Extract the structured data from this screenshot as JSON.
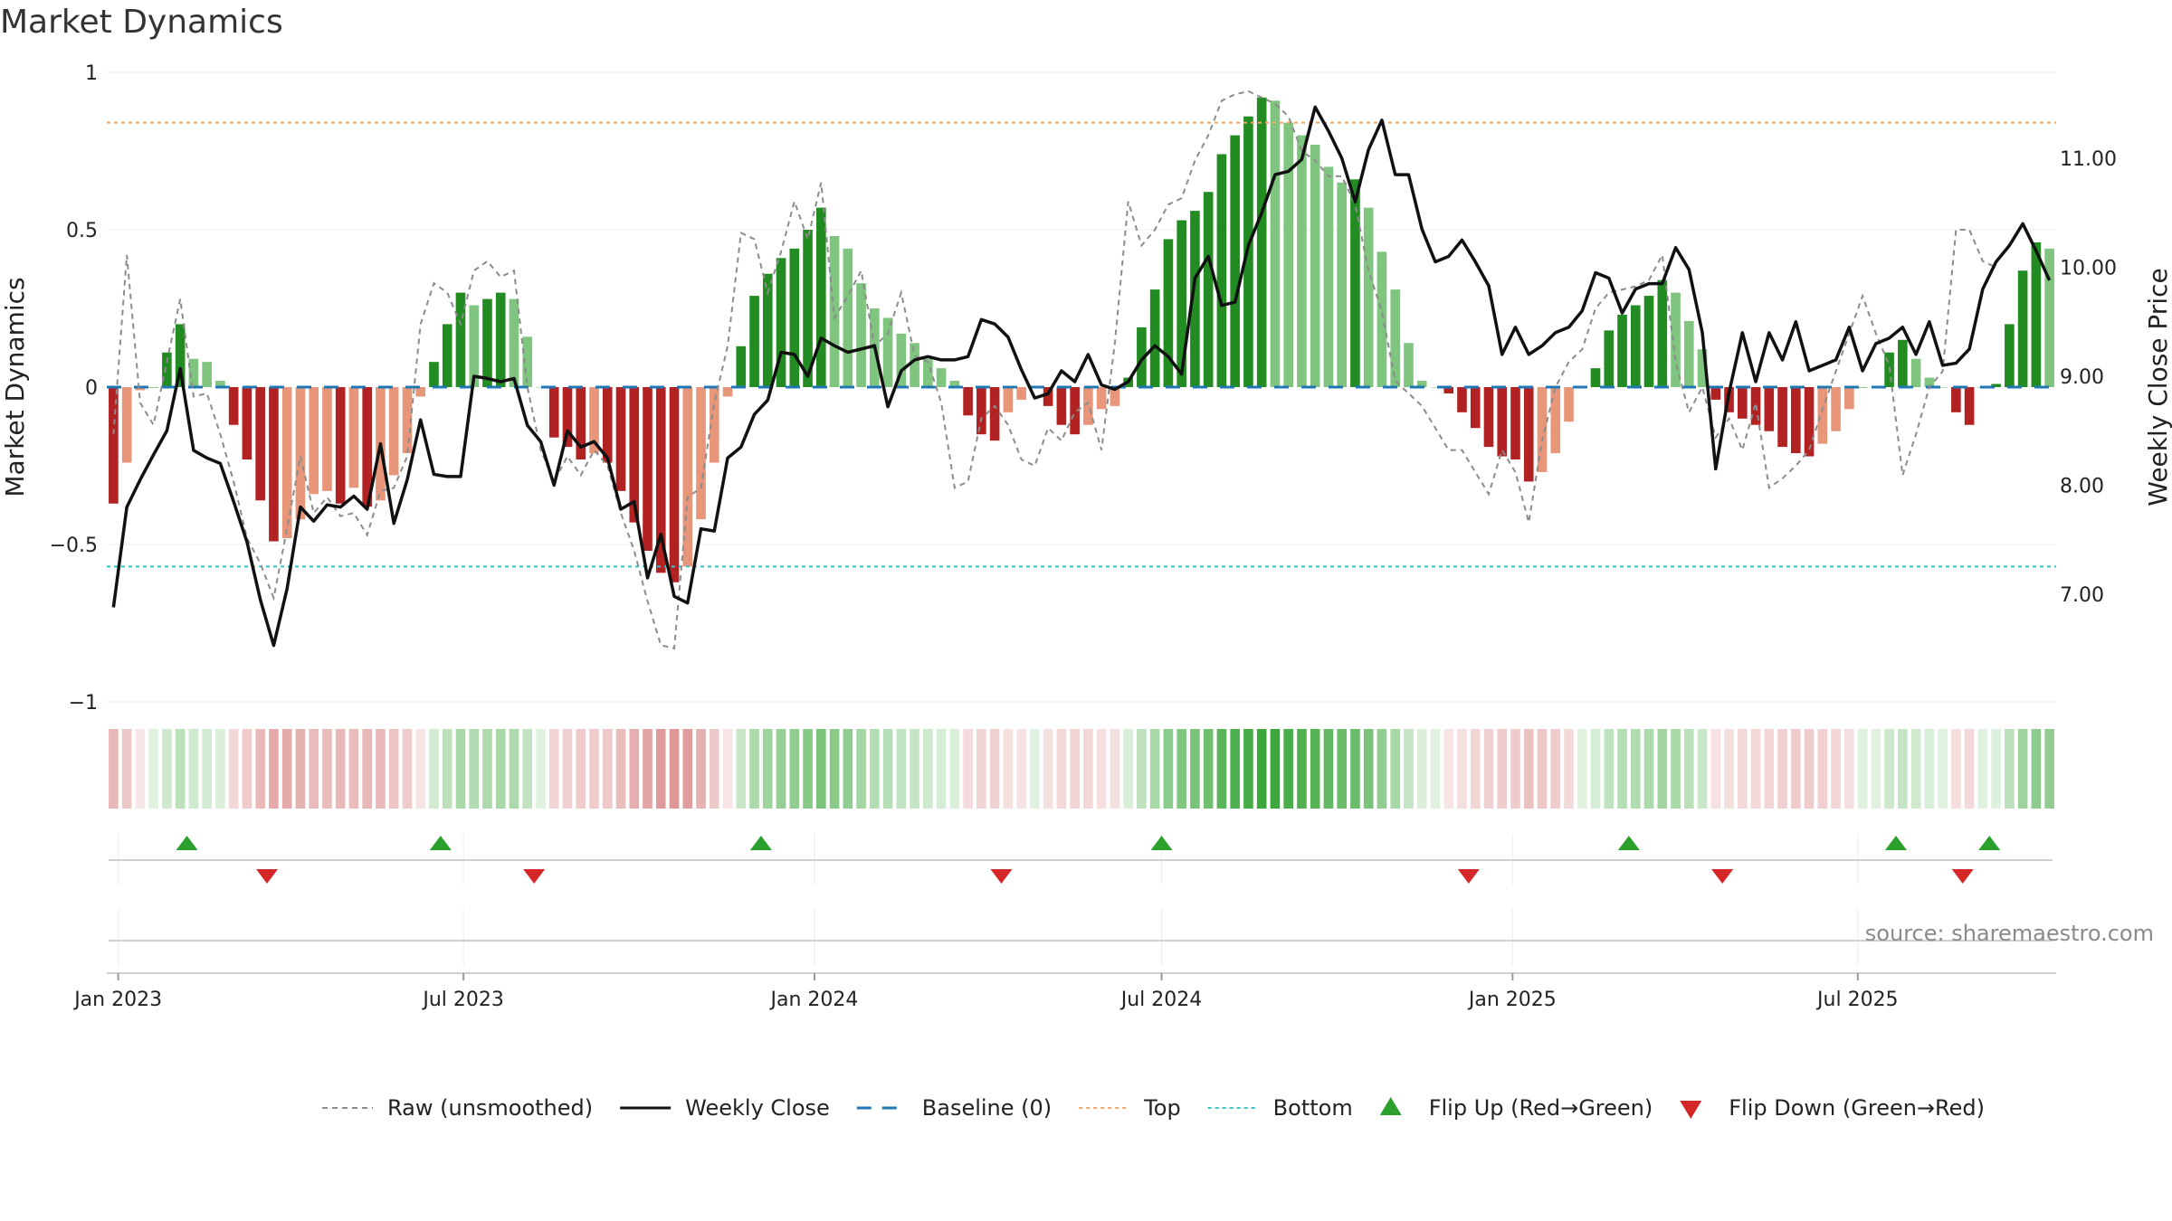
{
  "chart_data": {
    "type": "bar",
    "title": "Market Dynamics",
    "ylabel": "Market Dynamics",
    "y2label": "Weekly Close Price",
    "ylim": [
      -1,
      1
    ],
    "y2lim": [
      6.0,
      11.8
    ],
    "yticks": [
      {
        "value": 1,
        "label": "1"
      },
      {
        "value": 0.5,
        "label": "0.5"
      },
      {
        "value": 0,
        "label": "0"
      },
      {
        "value": -0.5,
        "label": "−0.5"
      },
      {
        "value": -1,
        "label": "−1"
      }
    ],
    "y2ticks": [
      {
        "value": 7,
        "label": "7.00"
      },
      {
        "value": 8,
        "label": "8.00"
      },
      {
        "value": 9,
        "label": "9.00"
      },
      {
        "value": 10,
        "label": "10.00"
      },
      {
        "value": 11,
        "label": "11.00"
      }
    ],
    "x_start": "2022-12-26",
    "x_end": "2025-10-13",
    "xticks": [
      {
        "date": "2023-01-01",
        "label": "Jan 2023"
      },
      {
        "date": "2023-07-01",
        "label": "Jul 2023"
      },
      {
        "date": "2024-01-01",
        "label": "Jan 2024"
      },
      {
        "date": "2024-07-01",
        "label": "Jul 2024"
      },
      {
        "date": "2025-01-01",
        "label": "Jan 2025"
      },
      {
        "date": "2025-07-01",
        "label": "Jul 2025"
      }
    ],
    "top_level": 0.84,
    "bottom_level": -0.57,
    "grid": true,
    "legend_position": "bottom",
    "series": [
      {
        "name": "Market Dynamics (smoothed)",
        "kind": "bar",
        "values": [
          -0.37,
          -0.24,
          -0.01,
          0.0,
          0.11,
          0.2,
          0.09,
          0.08,
          0.02,
          -0.12,
          -0.23,
          -0.36,
          -0.49,
          -0.48,
          -0.42,
          -0.34,
          -0.33,
          -0.37,
          -0.32,
          -0.38,
          -0.36,
          -0.28,
          -0.21,
          -0.03,
          0.08,
          0.2,
          0.3,
          0.26,
          0.28,
          0.3,
          0.28,
          0.16,
          0.0,
          -0.16,
          -0.19,
          -0.23,
          -0.21,
          -0.24,
          -0.33,
          -0.43,
          -0.52,
          -0.59,
          -0.62,
          -0.57,
          -0.42,
          -0.24,
          -0.03,
          0.13,
          0.29,
          0.36,
          0.41,
          0.44,
          0.5,
          0.57,
          0.48,
          0.44,
          0.33,
          0.25,
          0.22,
          0.17,
          0.14,
          0.09,
          0.06,
          0.02,
          -0.09,
          -0.15,
          -0.17,
          -0.08,
          -0.04,
          0.0,
          -0.06,
          -0.12,
          -0.15,
          -0.12,
          -0.07,
          -0.06,
          0.03,
          0.19,
          0.31,
          0.47,
          0.53,
          0.56,
          0.62,
          0.74,
          0.8,
          0.86,
          0.92,
          0.91,
          0.84,
          0.8,
          0.77,
          0.7,
          0.65,
          0.66,
          0.57,
          0.43,
          0.31,
          0.14,
          0.02,
          0.0,
          -0.02,
          -0.08,
          -0.13,
          -0.19,
          -0.22,
          -0.23,
          -0.3,
          -0.27,
          -0.21,
          -0.11,
          0.0,
          0.06,
          0.18,
          0.23,
          0.26,
          0.29,
          0.34,
          0.3,
          0.21,
          0.12,
          -0.04,
          -0.08,
          -0.1,
          -0.12,
          -0.14,
          -0.19,
          -0.21,
          -0.22,
          -0.18,
          -0.14,
          -0.07,
          0.0,
          0.0,
          0.11,
          0.15,
          0.09,
          0.03,
          0.0,
          -0.08,
          -0.12,
          0.0,
          0.01,
          0.2,
          0.37,
          0.46,
          0.44
        ]
      },
      {
        "name": "Raw (unsmoothed)",
        "kind": "line",
        "style": "dashed",
        "color": "#8c8c8c",
        "values": [
          -0.15,
          0.42,
          -0.05,
          -0.12,
          0.08,
          0.28,
          -0.03,
          -0.02,
          -0.15,
          -0.3,
          -0.48,
          -0.56,
          -0.67,
          -0.45,
          -0.22,
          -0.4,
          -0.35,
          -0.41,
          -0.4,
          -0.47,
          -0.33,
          -0.32,
          -0.22,
          0.2,
          0.33,
          0.3,
          0.2,
          0.37,
          0.4,
          0.35,
          0.37,
          0.0,
          -0.2,
          -0.3,
          -0.22,
          -0.28,
          -0.2,
          -0.25,
          -0.4,
          -0.52,
          -0.68,
          -0.82,
          -0.83,
          -0.35,
          -0.32,
          -0.05,
          0.13,
          0.49,
          0.47,
          0.3,
          0.43,
          0.59,
          0.47,
          0.65,
          0.22,
          0.29,
          0.37,
          0.13,
          0.17,
          0.3,
          0.1,
          0.08,
          -0.05,
          -0.32,
          -0.3,
          -0.1,
          -0.06,
          -0.12,
          -0.23,
          -0.25,
          -0.13,
          -0.17,
          -0.08,
          -0.05,
          -0.2,
          0.14,
          0.59,
          0.45,
          0.5,
          0.58,
          0.6,
          0.72,
          0.8,
          0.91,
          0.93,
          0.94,
          0.92,
          0.9,
          0.86,
          0.75,
          0.72,
          0.67,
          0.67,
          0.58,
          0.37,
          0.24,
          0.02,
          -0.02,
          -0.06,
          -0.13,
          -0.2,
          -0.2,
          -0.27,
          -0.34,
          -0.2,
          -0.27,
          -0.43,
          -0.17,
          0.0,
          0.08,
          0.12,
          0.25,
          0.3,
          0.31,
          0.32,
          0.34,
          0.42,
          0.08,
          -0.08,
          0.0,
          -0.16,
          -0.1,
          -0.2,
          -0.05,
          -0.32,
          -0.29,
          -0.25,
          -0.2,
          -0.07,
          0.05,
          0.17,
          0.29,
          0.17,
          0.07,
          -0.28,
          -0.15,
          0.0,
          0.05,
          0.5,
          0.5,
          0.4,
          0.38
        ]
      },
      {
        "name": "Weekly Close",
        "kind": "line",
        "axis": "right",
        "color": "#111111",
        "values": [
          6.88,
          7.8,
          8.05,
          8.28,
          8.5,
          9.07,
          8.32,
          8.25,
          8.2,
          7.85,
          7.48,
          6.95,
          6.53,
          7.05,
          7.8,
          7.67,
          7.82,
          7.8,
          7.9,
          7.78,
          8.38,
          7.65,
          8.05,
          8.6,
          8.1,
          8.08,
          8.08,
          9.0,
          8.98,
          8.95,
          8.98,
          8.55,
          8.4,
          8.0,
          8.5,
          8.35,
          8.4,
          8.25,
          7.78,
          7.85,
          7.15,
          7.55,
          6.98,
          6.92,
          7.6,
          7.58,
          8.25,
          8.35,
          8.65,
          8.78,
          9.22,
          9.2,
          9.0,
          9.35,
          9.28,
          9.22,
          9.25,
          9.28,
          8.72,
          9.05,
          9.15,
          9.18,
          9.15,
          9.15,
          9.18,
          9.52,
          9.48,
          9.36,
          9.06,
          8.8,
          8.84,
          9.05,
          8.95,
          9.2,
          8.92,
          8.88,
          8.95,
          9.15,
          9.28,
          9.18,
          9.02,
          9.9,
          10.1,
          9.65,
          9.68,
          10.2,
          10.5,
          10.85,
          10.88,
          10.99,
          11.47,
          11.25,
          11.0,
          10.6,
          11.08,
          11.35,
          10.85,
          10.85,
          10.35,
          10.05,
          10.1,
          10.25,
          10.05,
          9.83,
          9.2,
          9.45,
          9.2,
          9.28,
          9.4,
          9.45,
          9.6,
          9.95,
          9.9,
          9.58,
          9.8,
          9.85,
          9.85,
          10.18,
          9.98,
          9.4,
          8.15,
          8.85,
          9.4,
          8.95,
          9.4,
          9.15,
          9.5,
          9.05,
          9.1,
          9.15,
          9.45,
          9.05,
          9.3,
          9.35,
          9.45,
          9.2,
          9.5,
          9.1,
          9.12,
          9.25,
          9.8,
          10.05,
          10.2,
          10.4,
          10.15,
          9.88
        ]
      }
    ],
    "flip_up_dates": [
      "2023-02-06",
      "2023-06-19",
      "2023-12-04",
      "2024-07-01",
      "2025-03-03",
      "2025-07-21",
      "2025-09-08"
    ],
    "flip_down_dates": [
      "2023-03-20",
      "2023-08-07",
      "2024-04-08",
      "2024-12-09",
      "2025-04-21",
      "2025-08-25"
    ],
    "colors": {
      "strong_green": "#228b22",
      "light_green": "#7fc47f",
      "strong_red": "#b22222",
      "light_red": "#e8967a",
      "top_line": "#f0a868",
      "bottom_line": "#35c4c8",
      "baseline": "#1f77b4",
      "flip_up": "#2ca02c",
      "flip_down": "#d62728"
    }
  },
  "legend": {
    "items": [
      {
        "label": "Raw (unsmoothed)",
        "symbol": "dashed-line",
        "color": "#8c8c8c"
      },
      {
        "label": "Weekly Close",
        "symbol": "solid-line",
        "color": "#111111"
      },
      {
        "label": "Baseline (0)",
        "symbol": "long-dash-line",
        "color": "#1f77b4"
      },
      {
        "label": "Top",
        "symbol": "dotted-line",
        "color": "#f0a868"
      },
      {
        "label": "Bottom",
        "symbol": "dotted-line",
        "color": "#35c4c8"
      },
      {
        "label": "Flip Up (Red→Green)",
        "symbol": "triangle-up",
        "color": "#2ca02c"
      },
      {
        "label": "Flip Down (Green→Red)",
        "symbol": "triangle-down",
        "color": "#d62728"
      }
    ]
  },
  "source_text": "source: sharemaestro.com"
}
